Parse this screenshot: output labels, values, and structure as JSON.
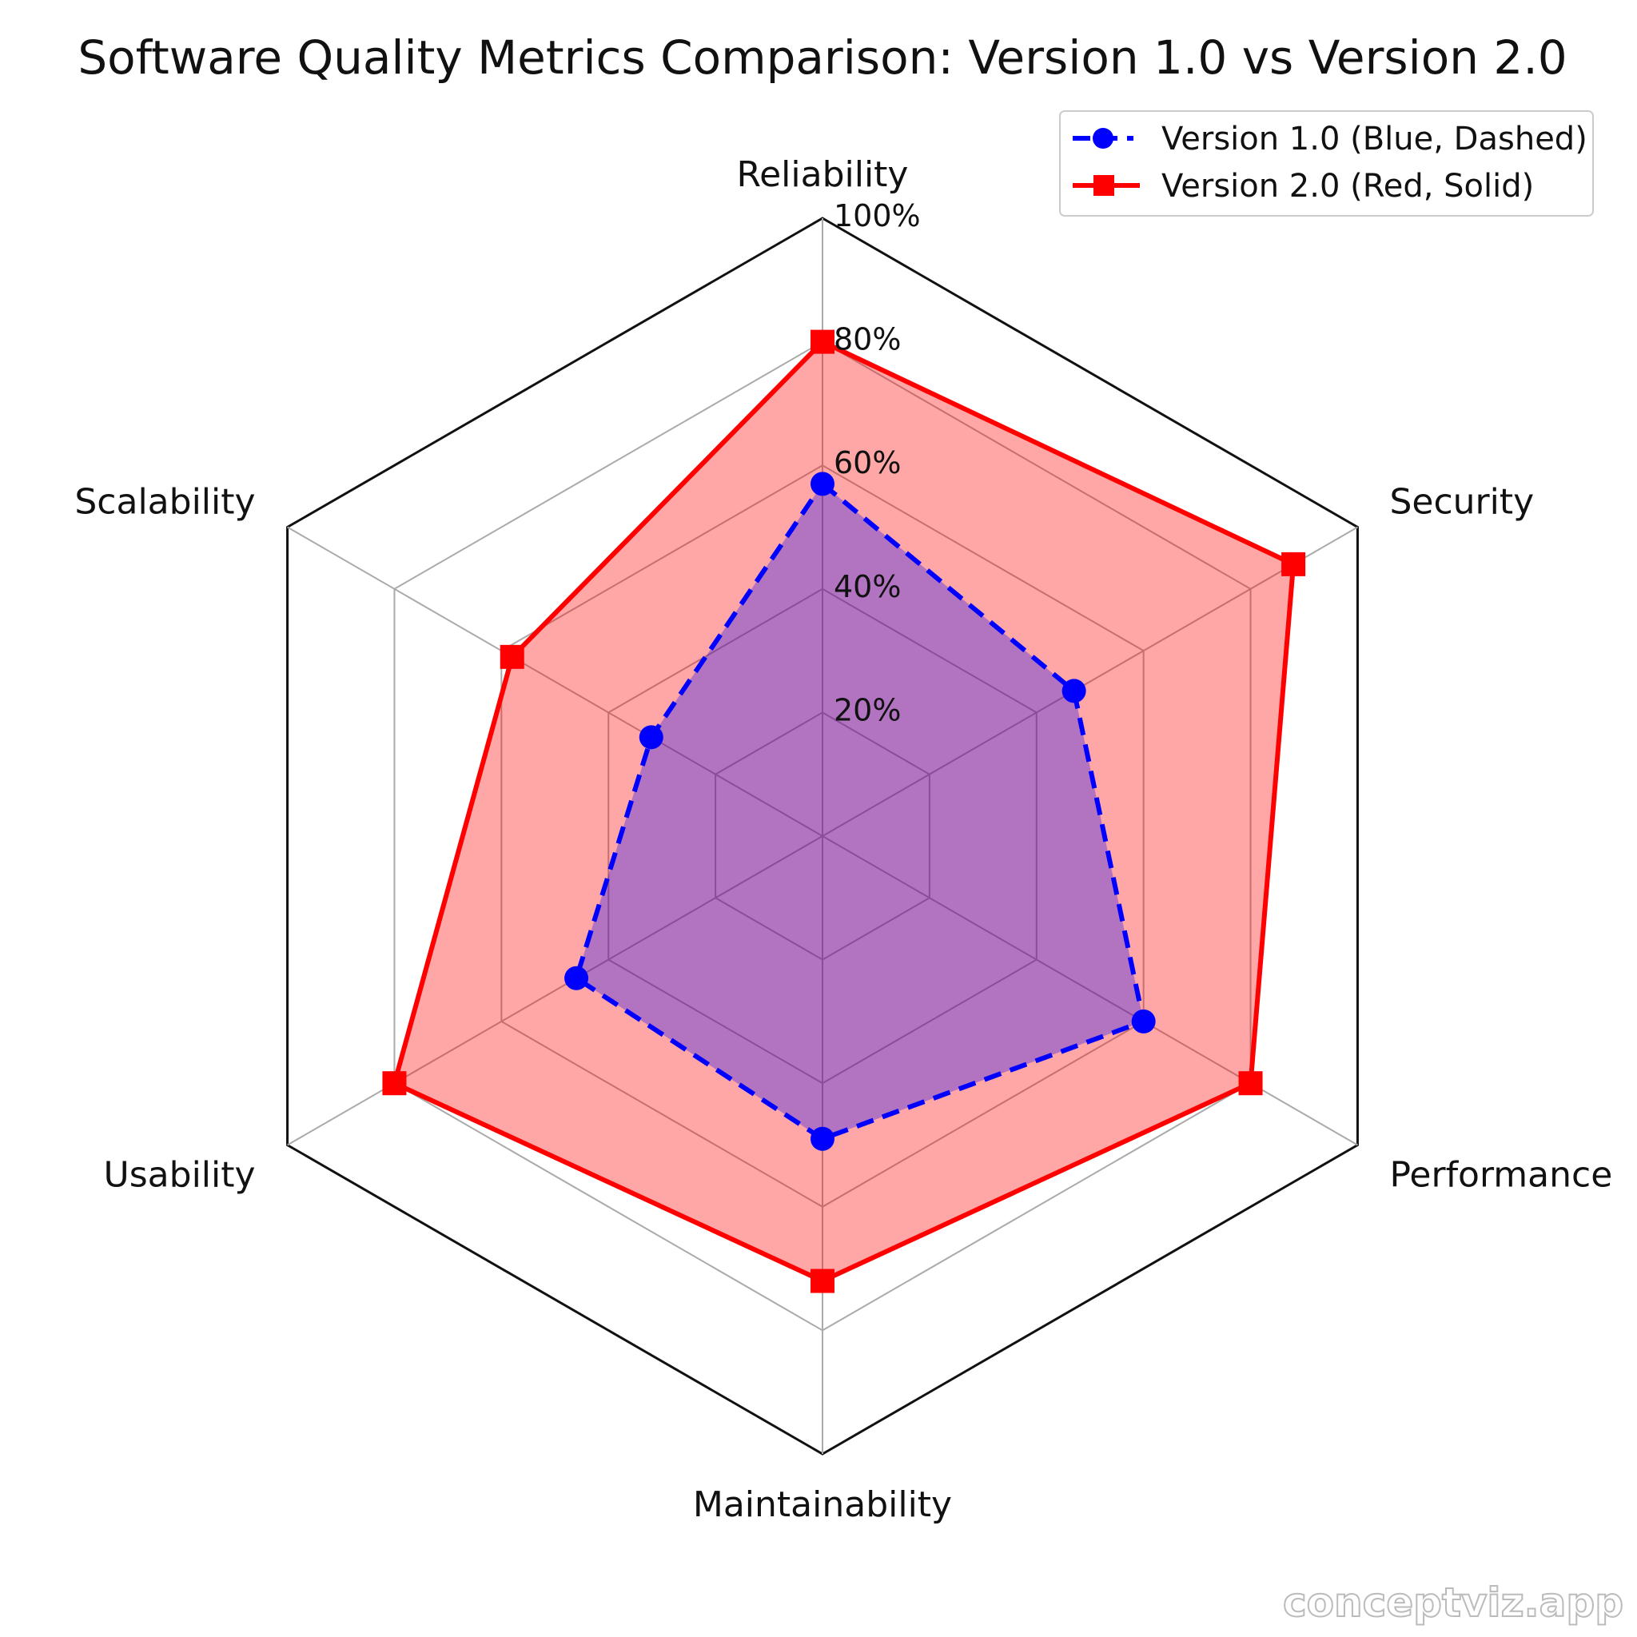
{
  "chart_data": {
    "type": "radar",
    "title": "Software Quality Metrics Comparison: Version 1.0 vs Version 2.0",
    "categories": [
      "Reliability",
      "Security",
      "Performance",
      "Maintainability",
      "Usability",
      "Scalability"
    ],
    "rlim": [
      0,
      100
    ],
    "r_ticks": [
      20,
      40,
      60,
      80,
      100
    ],
    "r_tick_labels": [
      "20%",
      "40%",
      "60%",
      "80%",
      "100%"
    ],
    "grid": true,
    "legend_position": "top-right",
    "series": [
      {
        "name": "Version 1.0 (Blue, Dashed)",
        "values": [
          57,
          47,
          60,
          49,
          46,
          32
        ],
        "color": "#0000ff",
        "line": "dashed",
        "marker": "circle"
      },
      {
        "name": "Version 2.0 (Red, Solid)",
        "values": [
          80,
          88,
          80,
          72,
          80,
          58
        ],
        "color": "#ff0000",
        "line": "solid",
        "marker": "square"
      }
    ]
  },
  "watermark": "conceptviz.app"
}
